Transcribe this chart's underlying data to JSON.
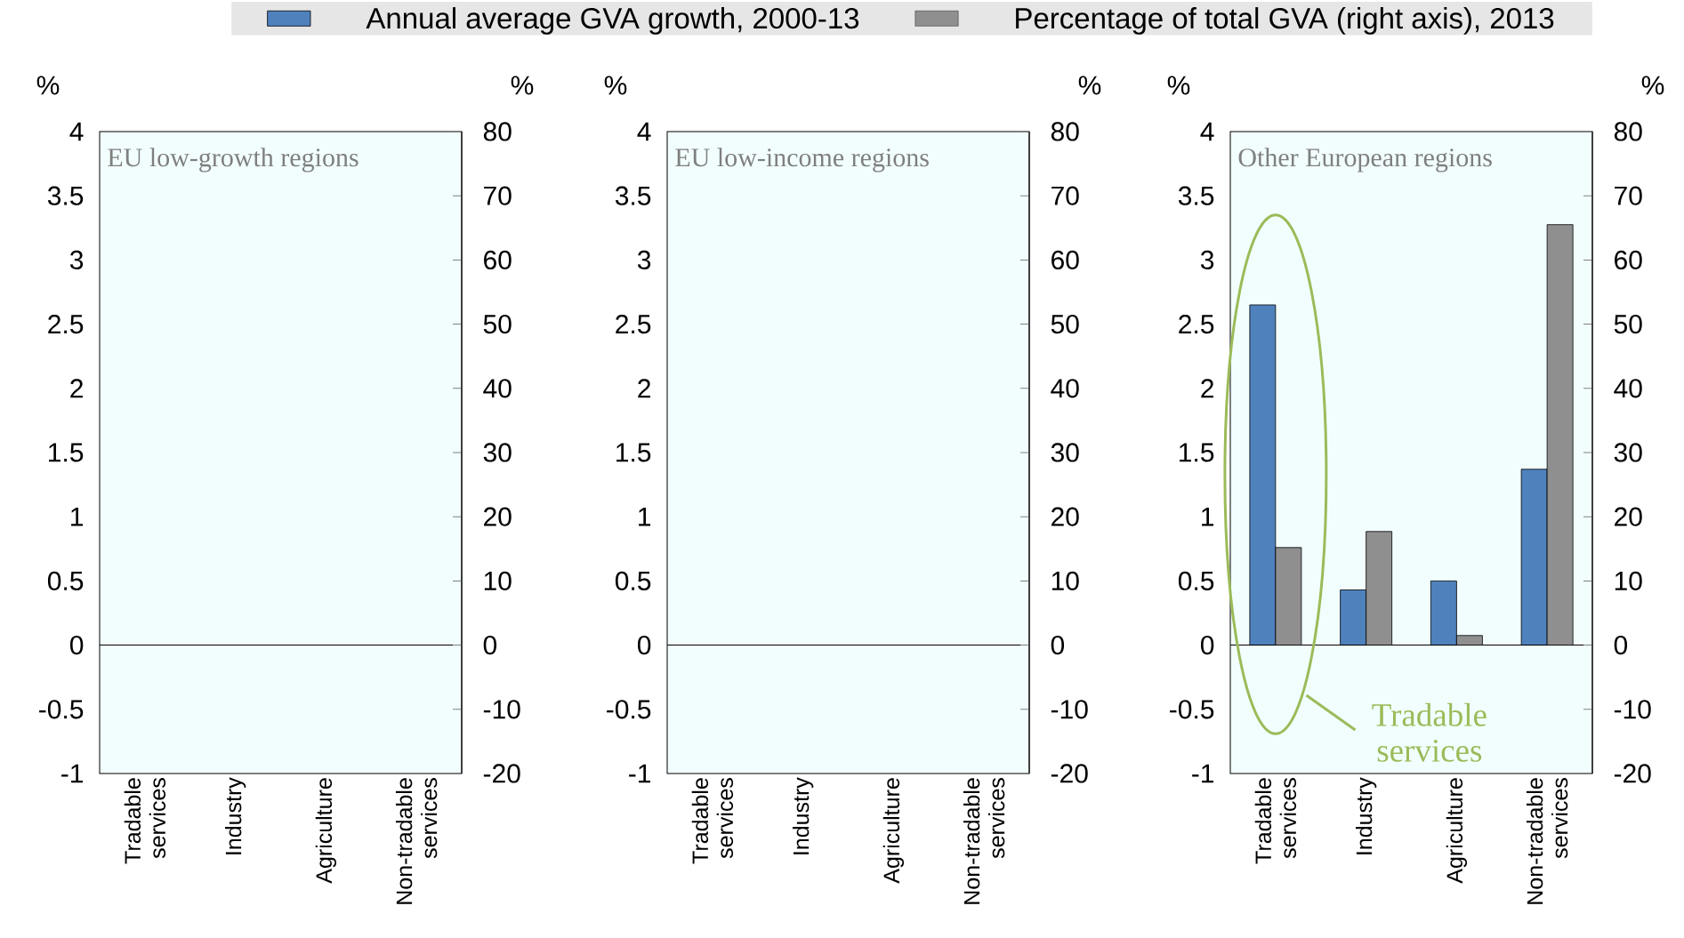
{
  "chart_data": [
    {
      "type": "bar",
      "title": "EU low-growth regions",
      "categories": [
        "Tradable services",
        "Industry",
        "Agriculture",
        "Non-tradable services"
      ],
      "ylabel": "%",
      "y2label": "%",
      "ylim": [
        -1,
        4
      ],
      "yticks": [
        -1,
        -0.5,
        0,
        0.5,
        1,
        1.5,
        2,
        2.5,
        3,
        3.5,
        4
      ],
      "y2lim": [
        -20,
        80
      ],
      "y2ticks": [
        -20,
        -10,
        0,
        10,
        20,
        30,
        40,
        50,
        60,
        70,
        80
      ],
      "series": [
        {
          "color": "#4f81bd",
          "values": [
            null,
            null,
            null,
            null
          ]
        },
        {
          "color": "#8f8f8f",
          "axis": "y2",
          "values": [
            null,
            null,
            null,
            null
          ]
        }
      ]
    },
    {
      "type": "bar",
      "title": "EU low-income regions",
      "categories": [
        "Tradable services",
        "Industry",
        "Agriculture",
        "Non-tradable services"
      ],
      "ylabel": "%",
      "y2label": "%",
      "ylim": [
        -1,
        4
      ],
      "yticks": [
        -1,
        -0.5,
        0,
        0.5,
        1,
        1.5,
        2,
        2.5,
        3,
        3.5,
        4
      ],
      "y2lim": [
        -20,
        80
      ],
      "y2ticks": [
        -20,
        -10,
        0,
        10,
        20,
        30,
        40,
        50,
        60,
        70,
        80
      ],
      "series": [
        {
          "color": "#4f81bd",
          "values": [
            null,
            null,
            null,
            null
          ]
        },
        {
          "color": "#8f8f8f",
          "axis": "y2",
          "values": [
            null,
            null,
            null,
            null
          ]
        }
      ]
    },
    {
      "type": "bar",
      "title": "Other European regions",
      "categories": [
        "Tradable services",
        "Industry",
        "Agriculture",
        "Non-tradable services"
      ],
      "ylabel": "%",
      "y2label": "%",
      "ylim": [
        -1,
        4
      ],
      "yticks": [
        -1,
        -0.5,
        0,
        0.5,
        1,
        1.5,
        2,
        2.5,
        3,
        3.5,
        4
      ],
      "y2lim": [
        -20,
        80
      ],
      "y2ticks": [
        -20,
        -10,
        0,
        10,
        20,
        30,
        40,
        50,
        60,
        70,
        80
      ],
      "legend": "top",
      "annotations": [
        "Tradable services"
      ],
      "series": [
        {
          "name": "Annual average GVA growth, 2000-13",
          "color": "#4f81bd",
          "values": [
            2.65,
            0.43,
            0.5,
            1.37
          ]
        },
        {
          "name": "Percentage of total GVA (right axis), 2013",
          "color": "#8f8f8f",
          "axis": "y2",
          "values": [
            15.2,
            17.7,
            1.5,
            65.5
          ]
        }
      ]
    }
  ]
}
